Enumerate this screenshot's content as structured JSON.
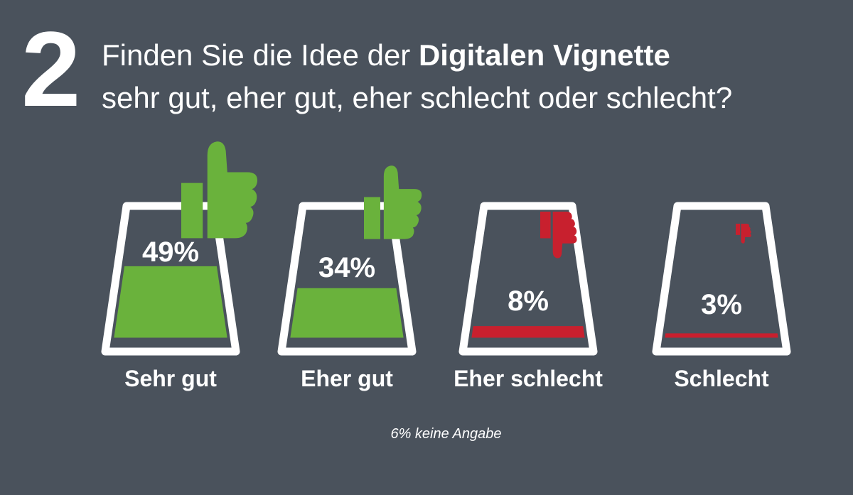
{
  "question": {
    "number": "2",
    "line1_prefix": "Finden Sie die Idee der ",
    "line1_bold": "Digitalen Vignette",
    "line2": "sehr gut, eher gut, eher schlecht oder schlecht?"
  },
  "chart_data": {
    "type": "bar",
    "categories": [
      "Sehr gut",
      "Eher gut",
      "Eher schlecht",
      "Schlecht"
    ],
    "values": [
      49,
      34,
      8,
      3
    ],
    "value_labels": [
      "49%",
      "34%",
      "8%",
      "3%"
    ],
    "unit": "%",
    "ylim": [
      0,
      100
    ],
    "colors": [
      "#6ab23c",
      "#6ab23c",
      "#c8202e",
      "#c8202e"
    ],
    "icons": [
      "thumbs-up-icon",
      "thumbs-up-icon",
      "thumbs-down-icon",
      "thumbs-down-icon"
    ],
    "footnote": "6% keine Angabe"
  },
  "theme": {
    "background": "#4a525c",
    "text": "#ffffff",
    "positive": "#6ab23c",
    "negative": "#c8202e"
  }
}
